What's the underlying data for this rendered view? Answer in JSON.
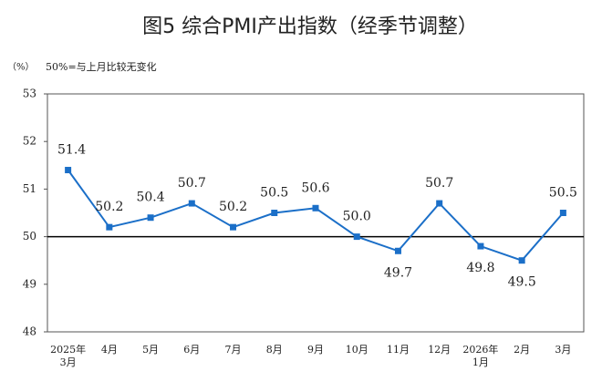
{
  "chart_data": {
    "type": "line",
    "title": "图5  综合PMI产出指数（经季节调整）",
    "ylabel": "（%）",
    "subtitle": "50%=与上月比较无变化",
    "categories": [
      "2025年\n3月",
      "4月",
      "5月",
      "6月",
      "7月",
      "8月",
      "9月",
      "10月",
      "11月",
      "12月",
      "2026年\n1月",
      "2月",
      "3月"
    ],
    "values": [
      51.4,
      50.2,
      50.4,
      50.7,
      50.2,
      50.5,
      50.6,
      50.0,
      49.7,
      50.7,
      49.8,
      49.5,
      50.5
    ],
    "value_labels": [
      "51.4",
      "50.2",
      "50.4",
      "50.7",
      "50.2",
      "50.5",
      "50.6",
      "50.0",
      "49.7",
      "50.7",
      "49.8",
      "49.5",
      "50.5"
    ],
    "color": "#1b6fc8",
    "ylim": [
      48,
      53
    ],
    "yticks": [
      48,
      49,
      50,
      51,
      52,
      53
    ],
    "baseline": 50
  }
}
